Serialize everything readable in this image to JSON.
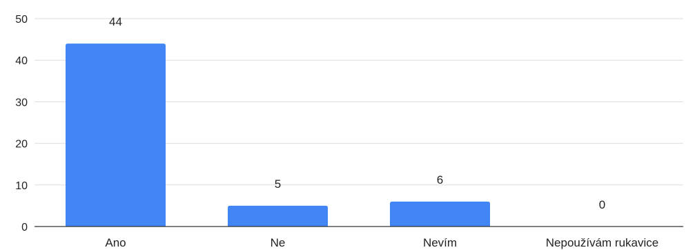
{
  "chart_data": {
    "type": "bar",
    "categories": [
      "Ano",
      "Ne",
      "Nevím",
      "Nepoužívám rukavice"
    ],
    "values": [
      44,
      5,
      6,
      0
    ],
    "data_labels": [
      "44",
      "5",
      "6",
      "0"
    ],
    "title": "",
    "xlabel": "",
    "ylabel": "",
    "ylim": [
      0,
      50
    ],
    "yticks": [
      0,
      10,
      20,
      30,
      40,
      50
    ],
    "ytick_labels": [
      "0",
      "10",
      "20",
      "30",
      "40",
      "50"
    ],
    "grid": true,
    "legend": "none",
    "colors": {
      "bar": "#4285f4",
      "grid": "#dddddd",
      "axis": "#333333",
      "text": "#222222"
    }
  }
}
